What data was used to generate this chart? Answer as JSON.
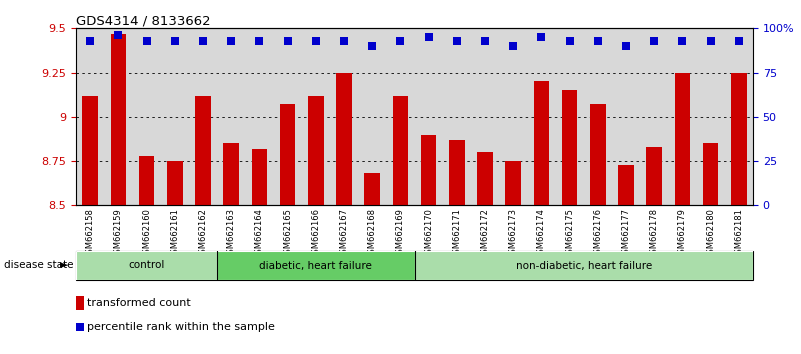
{
  "title": "GDS4314 / 8133662",
  "samples": [
    "GSM662158",
    "GSM662159",
    "GSM662160",
    "GSM662161",
    "GSM662162",
    "GSM662163",
    "GSM662164",
    "GSM662165",
    "GSM662166",
    "GSM662167",
    "GSM662168",
    "GSM662169",
    "GSM662170",
    "GSM662171",
    "GSM662172",
    "GSM662173",
    "GSM662174",
    "GSM662175",
    "GSM662176",
    "GSM662177",
    "GSM662178",
    "GSM662179",
    "GSM662180",
    "GSM662181"
  ],
  "bar_values": [
    9.12,
    9.47,
    8.78,
    8.75,
    9.12,
    8.85,
    8.82,
    9.07,
    9.12,
    9.25,
    8.68,
    9.12,
    8.9,
    8.87,
    8.8,
    8.75,
    9.2,
    9.15,
    9.07,
    8.73,
    8.83,
    9.25,
    8.85,
    9.25
  ],
  "percentile_values": [
    93,
    96,
    93,
    93,
    93,
    93,
    93,
    93,
    93,
    93,
    90,
    93,
    95,
    93,
    93,
    90,
    95,
    93,
    93,
    90,
    93,
    93,
    93,
    93
  ],
  "bar_color": "#cc0000",
  "percentile_color": "#0000cc",
  "ylim": [
    8.5,
    9.5
  ],
  "yticks": [
    8.5,
    8.75,
    9.0,
    9.25,
    9.5
  ],
  "ytick_labels": [
    "8.5",
    "8.75",
    "9",
    "9.25",
    "9.5"
  ],
  "right_yticks": [
    0,
    25,
    50,
    75,
    100
  ],
  "right_ytick_labels": [
    "0",
    "25",
    "50",
    "75",
    "100%"
  ],
  "groups": [
    {
      "label": "control",
      "start": 0,
      "end": 4,
      "color": "#aaddaa"
    },
    {
      "label": "diabetic, heart failure",
      "start": 5,
      "end": 11,
      "color": "#66cc66"
    },
    {
      "label": "non-diabetic, heart failure",
      "start": 12,
      "end": 23,
      "color": "#aaddaa"
    }
  ],
  "disease_state_label": "disease state",
  "legend_bar_label": "transformed count",
  "legend_dot_label": "percentile rank within the sample",
  "bg_color": "#d8d8d8",
  "grid_color": "#000000",
  "bar_width": 0.55
}
